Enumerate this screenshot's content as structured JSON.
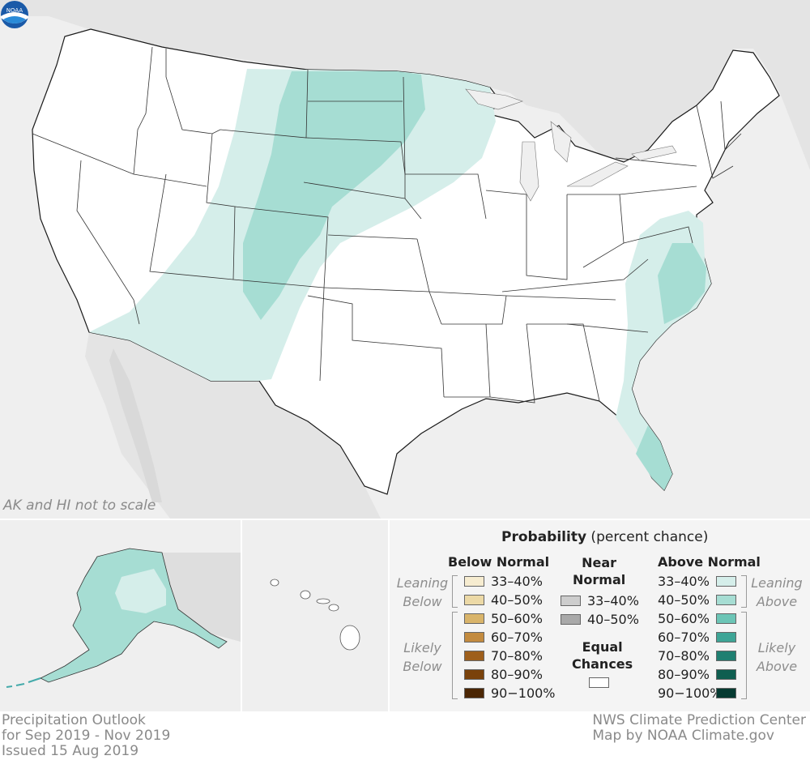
{
  "map_note": "AK and HI not to scale",
  "legend": {
    "title_bold": "Probability",
    "title_rest": " (percent chance)",
    "below_header": "Below Normal",
    "near_header_1": "Near",
    "near_header_2": "Normal",
    "above_header": "Above Normal",
    "leaning_below_1": "Leaning",
    "leaning_below_2": "Below",
    "likely_below_1": "Likely",
    "likely_below_2": "Below",
    "leaning_above_1": "Leaning",
    "leaning_above_2": "Above",
    "likely_above_1": "Likely",
    "likely_above_2": "Above",
    "equal_1": "Equal",
    "equal_2": "Chances",
    "below_items": [
      {
        "label": "33–40%",
        "color": "#f6ecd0"
      },
      {
        "label": "40–50%",
        "color": "#ecd9a6"
      },
      {
        "label": "50–60%",
        "color": "#d9b46a"
      },
      {
        "label": "60–70%",
        "color": "#c38b3f"
      },
      {
        "label": "70–80%",
        "color": "#9e5f1c"
      },
      {
        "label": "80–90%",
        "color": "#7a420b"
      },
      {
        "label": "90−100%",
        "color": "#4b2604"
      }
    ],
    "near_items": [
      {
        "label": "33–40%",
        "color": "#cdcdcd"
      },
      {
        "label": "40–50%",
        "color": "#a9a9a9"
      }
    ],
    "above_items": [
      {
        "label": "33–40%",
        "color": "#d5eeea"
      },
      {
        "label": "40–50%",
        "color": "#a6ddd3"
      },
      {
        "label": "50–60%",
        "color": "#6cc5b6"
      },
      {
        "label": "60–70%",
        "color": "#3ea596"
      },
      {
        "label": "70–80%",
        "color": "#1f7f71"
      },
      {
        "label": "80–90%",
        "color": "#0f5e50"
      },
      {
        "label": "90−100%",
        "color": "#063b32"
      }
    ],
    "equal_color": "#ffffff"
  },
  "footer": {
    "left_1": "Precipitation Outlook",
    "left_2": "for Sep 2019 - Nov 2019",
    "left_3": "Issued 15 Aug 2019",
    "right_1": "NWS Climate Prediction Center",
    "right_2": "Map by NOAA Climate.gov"
  },
  "noaa_logo_text": "NOAA",
  "colors": {
    "land_out": "#e6e6e6",
    "sea": "#efefef",
    "leaning_above": "#d5eeea",
    "above_40_50": "#a6ddd3",
    "likely_above": "#6cc5b6"
  }
}
